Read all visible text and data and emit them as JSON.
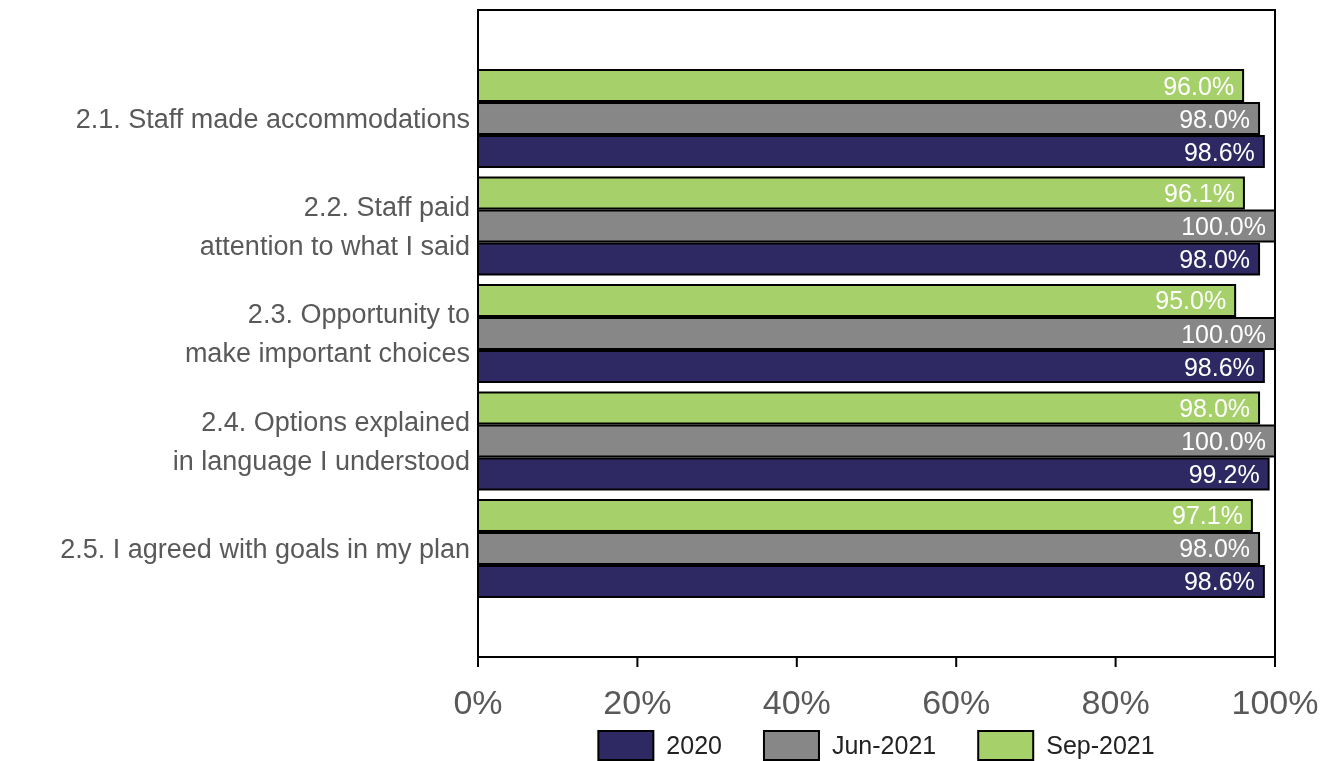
{
  "chart_data": {
    "type": "bar",
    "orientation": "horizontal",
    "categories": [
      "2.1. Staff made accommodations",
      "2.2. Staff paid\nattention to what I said",
      "2.3. Opportunity to\nmake important choices",
      "2.4. Options explained\nin language I understood",
      "2.5. I agreed with goals in my plan"
    ],
    "series": [
      {
        "name": "2020",
        "color": "#2e2963",
        "values": [
          98.6,
          98.0,
          98.6,
          99.2,
          98.6
        ],
        "value_labels": [
          "98.6%",
          "98.0%",
          "98.6%",
          "99.2%",
          "98.6%"
        ]
      },
      {
        "name": "Jun-2021",
        "color": "#878787",
        "values": [
          98.0,
          100.0,
          100.0,
          100.0,
          98.0
        ],
        "value_labels": [
          "98.0%",
          "100.0%",
          "100.0%",
          "100.0%",
          "98.0%"
        ]
      },
      {
        "name": "Sep-2021",
        "color": "#a6d06a",
        "values": [
          96.0,
          96.1,
          95.0,
          98.0,
          97.1
        ],
        "value_labels": [
          "96.0%",
          "96.1%",
          "95.0%",
          "98.0%",
          "97.1%"
        ]
      }
    ],
    "xlim": [
      0,
      100
    ],
    "xticks": [
      {
        "value": 0,
        "label": "0%"
      },
      {
        "value": 20,
        "label": "20%"
      },
      {
        "value": 40,
        "label": "40%"
      },
      {
        "value": 60,
        "label": "60%"
      },
      {
        "value": 80,
        "label": "80%"
      },
      {
        "value": 100,
        "label": "100%"
      }
    ],
    "legend": "bottom"
  }
}
